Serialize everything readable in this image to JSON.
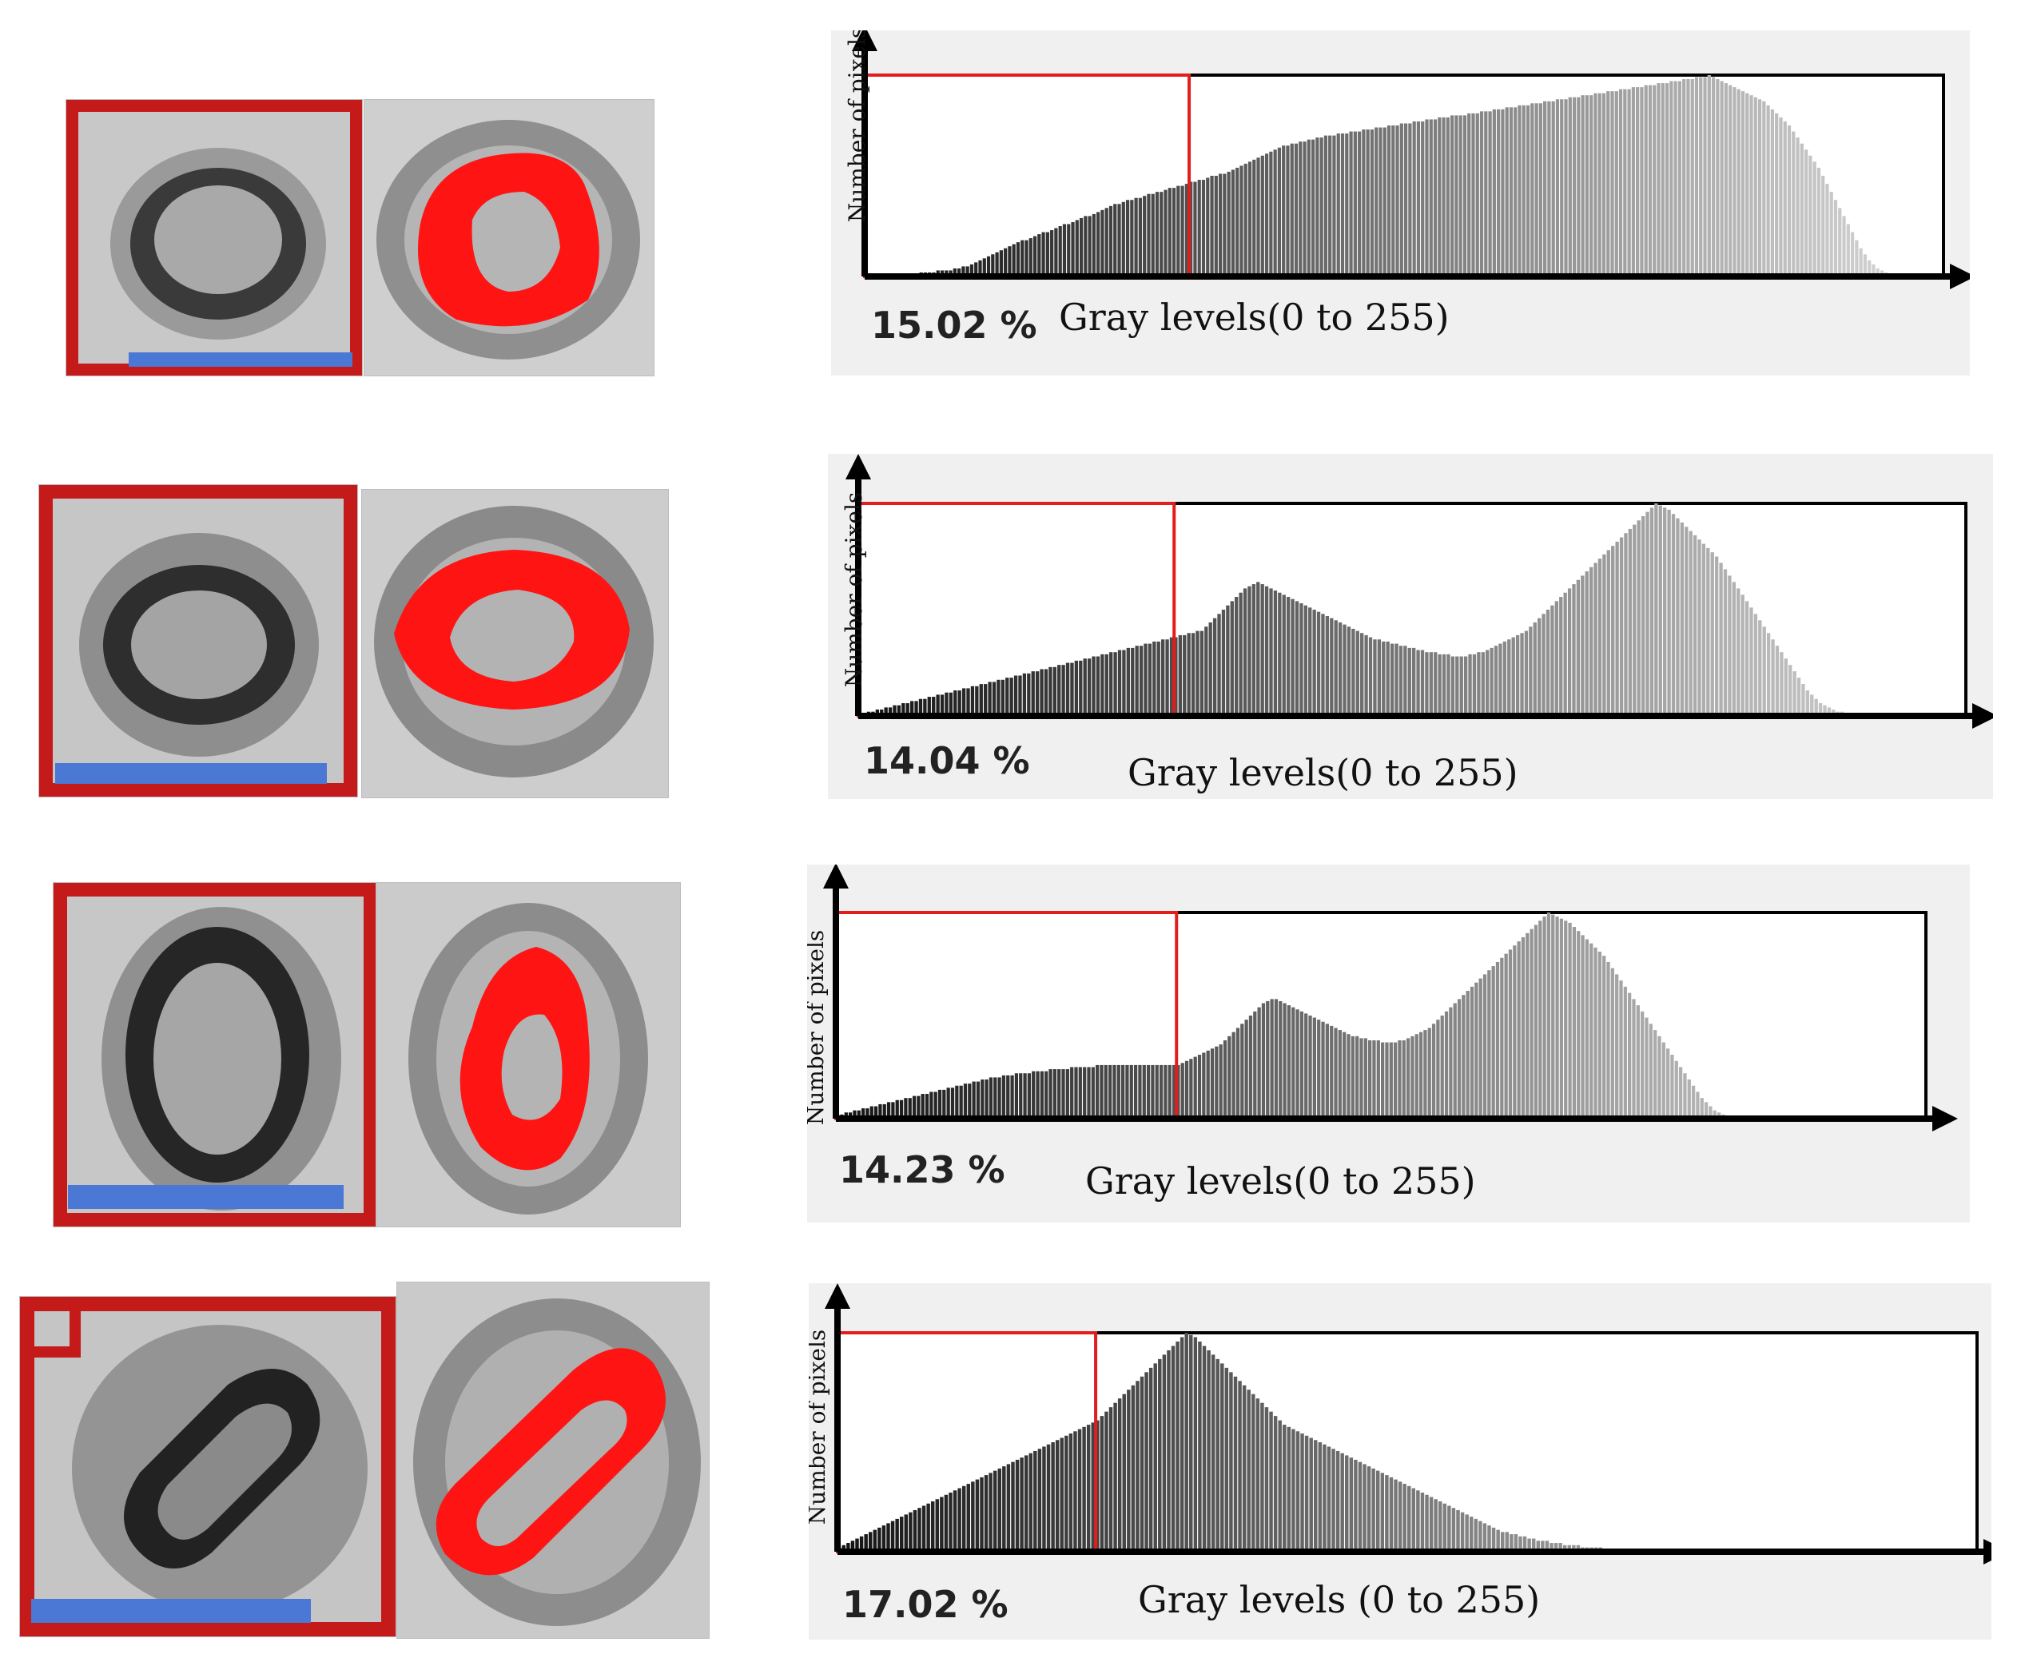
{
  "colors": {
    "threshold_line": "#e11d1d",
    "roi_box": "#c41a1a",
    "scale_bar": "#4a78d4",
    "segmentation": "#ff1414",
    "panel_background": "#f0f0f0",
    "axis": "#000000"
  },
  "micrographs": [
    {
      "roi": "red-box",
      "scale_bar": true
    },
    {
      "roi": "red-box",
      "scale_bar": true
    },
    {
      "roi": "red-box",
      "scale_bar": true
    },
    {
      "roi": "red-box",
      "scale_bar": true
    }
  ],
  "chart_data": [
    {
      "type": "bar",
      "xlabel": "Gray levels(0 to 255)",
      "ylabel": "Number of pixels",
      "threshold_percent_label": "15.02 %",
      "threshold_gray_level": 77,
      "xlim": [
        0,
        255
      ],
      "ylim": [
        0,
        100
      ],
      "x_start": 0,
      "values": [
        0,
        0,
        0,
        0,
        0,
        0,
        0,
        1,
        0,
        1,
        1,
        1,
        1,
        2,
        2,
        2,
        2,
        3,
        3,
        3,
        3,
        4,
        4,
        5,
        5,
        6,
        7,
        8,
        9,
        10,
        11,
        12,
        13,
        14,
        15,
        16,
        17,
        18,
        18,
        19,
        20,
        21,
        22,
        22,
        23,
        24,
        25,
        26,
        26,
        27,
        28,
        29,
        30,
        30,
        31,
        32,
        33,
        34,
        35,
        36,
        36,
        37,
        38,
        38,
        39,
        39,
        40,
        41,
        41,
        42,
        42,
        43,
        44,
        44,
        45,
        45,
        46,
        47,
        47,
        48,
        48,
        49,
        50,
        50,
        51,
        51,
        52,
        53,
        54,
        55,
        56,
        57,
        58,
        59,
        60,
        61,
        62,
        63,
        64,
        65,
        65,
        66,
        66,
        67,
        67,
        68,
        68,
        69,
        69,
        70,
        70,
        70,
        71,
        71,
        71,
        72,
        72,
        72,
        73,
        73,
        73,
        74,
        74,
        74,
        75,
        75,
        75,
        76,
        76,
        76,
        77,
        77,
        77,
        78,
        78,
        78,
        79,
        79,
        79,
        80,
        80,
        80,
        80,
        81,
        81,
        81,
        82,
        82,
        82,
        83,
        83,
        83,
        84,
        84,
        84,
        85,
        85,
        85,
        86,
        86,
        86,
        87,
        87,
        87,
        88,
        88,
        88,
        89,
        89,
        89,
        90,
        90,
        90,
        91,
        91,
        91,
        92,
        92,
        92,
        93,
        93,
        93,
        94,
        94,
        94,
        95,
        95,
        95,
        96,
        96,
        96,
        97,
        97,
        97,
        98,
        98,
        98,
        99,
        99,
        99,
        100,
        99,
        98,
        97,
        96,
        95,
        94,
        93,
        92,
        91,
        90,
        89,
        88,
        87,
        85,
        83,
        81,
        79,
        77,
        75,
        72,
        69,
        66,
        63,
        60,
        57,
        54,
        50,
        46,
        42,
        38,
        34,
        30,
        26,
        22,
        18,
        14,
        11,
        8,
        6,
        4,
        3,
        2,
        1,
        1,
        0,
        0,
        0,
        0,
        0,
        0,
        0,
        0,
        0,
        0,
        0
      ]
    },
    {
      "type": "bar",
      "xlabel": "Gray levels(0 to 255)",
      "ylabel": "Number of pixels",
      "threshold_percent_label": "14.04 %",
      "threshold_gray_level": 73,
      "xlim": [
        0,
        255
      ],
      "ylim": [
        0,
        100
      ],
      "x_start": 0,
      "values": [
        1,
        1,
        2,
        2,
        3,
        3,
        4,
        4,
        5,
        5,
        6,
        6,
        7,
        7,
        8,
        8,
        9,
        9,
        10,
        10,
        11,
        11,
        12,
        12,
        13,
        13,
        14,
        14,
        15,
        15,
        16,
        16,
        17,
        17,
        18,
        18,
        19,
        19,
        20,
        20,
        21,
        21,
        22,
        22,
        23,
        23,
        24,
        24,
        25,
        25,
        26,
        26,
        27,
        27,
        28,
        28,
        29,
        29,
        30,
        30,
        31,
        31,
        32,
        32,
        33,
        33,
        34,
        34,
        35,
        35,
        36,
        36,
        37,
        37,
        38,
        38,
        39,
        39,
        40,
        40,
        42,
        44,
        46,
        48,
        50,
        52,
        54,
        56,
        58,
        60,
        61,
        62,
        63,
        62,
        61,
        60,
        59,
        58,
        57,
        56,
        55,
        54,
        53,
        52,
        51,
        50,
        49,
        48,
        47,
        46,
        45,
        44,
        43,
        42,
        41,
        40,
        39,
        38,
        37,
        36,
        36,
        35,
        35,
        34,
        34,
        33,
        33,
        32,
        32,
        31,
        31,
        30,
        30,
        30,
        29,
        29,
        29,
        28,
        28,
        28,
        28,
        29,
        29,
        30,
        30,
        31,
        32,
        33,
        34,
        35,
        36,
        37,
        38,
        39,
        40,
        42,
        44,
        46,
        48,
        50,
        52,
        54,
        56,
        58,
        60,
        62,
        64,
        66,
        68,
        70,
        72,
        74,
        76,
        78,
        80,
        82,
        84,
        86,
        88,
        90,
        92,
        94,
        96,
        98,
        100,
        99,
        98,
        97,
        95,
        93,
        91,
        89,
        87,
        85,
        83,
        81,
        79,
        77,
        75,
        72,
        69,
        66,
        63,
        60,
        57,
        54,
        51,
        48,
        45,
        42,
        39,
        36,
        33,
        30,
        27,
        24,
        21,
        18,
        15,
        12,
        10,
        8,
        6,
        5,
        4,
        3,
        2,
        2,
        1,
        1,
        1,
        0,
        0,
        0,
        0,
        0,
        0,
        0,
        0,
        0,
        0,
        0,
        0,
        0,
        0,
        0,
        0,
        0,
        0,
        0,
        0,
        0,
        0,
        0,
        0,
        0,
        0,
        0,
        0,
        0,
        0,
        0,
        0,
        0,
        0
      ]
    },
    {
      "type": "bar",
      "xlabel": "Gray levels(0 to 255)",
      "ylabel": "Number of pixels",
      "threshold_percent_label": "14.23 %",
      "threshold_gray_level": 80,
      "xlim": [
        0,
        255
      ],
      "ylim": [
        0,
        100
      ],
      "x_start": 0,
      "values": [
        2,
        2,
        3,
        3,
        4,
        4,
        5,
        5,
        6,
        6,
        7,
        7,
        8,
        8,
        9,
        9,
        10,
        10,
        11,
        11,
        12,
        12,
        13,
        13,
        14,
        14,
        15,
        15,
        16,
        16,
        17,
        17,
        18,
        18,
        19,
        19,
        20,
        20,
        20,
        21,
        21,
        21,
        22,
        22,
        22,
        22,
        23,
        23,
        23,
        23,
        24,
        24,
        24,
        24,
        24,
        25,
        25,
        25,
        25,
        25,
        25,
        26,
        26,
        26,
        26,
        26,
        26,
        26,
        26,
        26,
        26,
        26,
        26,
        26,
        26,
        26,
        26,
        26,
        26,
        26,
        26,
        27,
        28,
        29,
        30,
        31,
        32,
        33,
        34,
        35,
        36,
        38,
        40,
        42,
        44,
        46,
        48,
        50,
        52,
        54,
        56,
        57,
        58,
        58,
        57,
        56,
        55,
        54,
        53,
        52,
        51,
        50,
        49,
        48,
        47,
        46,
        45,
        44,
        43,
        42,
        41,
        40,
        40,
        39,
        39,
        38,
        38,
        38,
        37,
        37,
        37,
        37,
        38,
        38,
        39,
        40,
        41,
        42,
        43,
        44,
        46,
        48,
        50,
        52,
        54,
        56,
        58,
        60,
        62,
        64,
        66,
        68,
        70,
        72,
        74,
        76,
        78,
        80,
        82,
        84,
        86,
        88,
        90,
        92,
        94,
        96,
        98,
        100,
        99,
        98,
        97,
        96,
        95,
        93,
        91,
        89,
        87,
        85,
        83,
        81,
        79,
        76,
        73,
        70,
        67,
        64,
        61,
        58,
        55,
        52,
        49,
        46,
        43,
        40,
        37,
        34,
        31,
        28,
        25,
        22,
        19,
        16,
        13,
        10,
        8,
        6,
        4,
        3,
        2,
        1,
        1,
        0,
        0,
        0,
        0,
        0,
        0,
        0,
        0,
        0,
        0,
        0,
        0,
        0,
        0,
        0,
        0,
        0,
        0,
        0,
        0,
        0,
        0,
        0,
        0,
        0,
        0,
        0,
        0,
        0,
        0,
        0,
        0,
        0,
        0,
        0,
        0,
        0,
        0,
        0,
        0,
        0,
        0,
        0,
        0,
        0,
        0
      ]
    },
    {
      "type": "bar",
      "xlabel": "Gray levels (0 to 255)",
      "ylabel": "Number of pixels",
      "threshold_percent_label": "17.02 %",
      "threshold_gray_level": 58,
      "xlim": [
        0,
        255
      ],
      "ylim": [
        0,
        100
      ],
      "x_start": 0,
      "values": [
        2,
        3,
        4,
        5,
        6,
        7,
        8,
        9,
        10,
        11,
        12,
        13,
        14,
        15,
        16,
        17,
        18,
        19,
        20,
        21,
        22,
        23,
        24,
        25,
        26,
        27,
        28,
        29,
        30,
        31,
        32,
        33,
        34,
        35,
        36,
        37,
        38,
        39,
        40,
        41,
        42,
        43,
        44,
        45,
        46,
        47,
        48,
        49,
        50,
        51,
        52,
        53,
        54,
        55,
        56,
        57,
        58,
        59,
        60,
        62,
        64,
        66,
        68,
        70,
        72,
        74,
        76,
        78,
        80,
        82,
        84,
        86,
        88,
        90,
        92,
        94,
        96,
        98,
        100,
        99,
        98,
        96,
        94,
        92,
        90,
        88,
        86,
        84,
        82,
        80,
        78,
        76,
        74,
        72,
        70,
        68,
        66,
        64,
        62,
        60,
        58,
        57,
        56,
        55,
        54,
        53,
        52,
        51,
        50,
        49,
        48,
        47,
        46,
        45,
        44,
        43,
        42,
        41,
        40,
        39,
        38,
        37,
        36,
        35,
        34,
        33,
        32,
        31,
        30,
        29,
        28,
        27,
        26,
        25,
        24,
        23,
        22,
        21,
        20,
        19,
        18,
        17,
        16,
        15,
        14,
        13,
        12,
        11,
        10,
        9,
        9,
        8,
        8,
        7,
        7,
        6,
        6,
        5,
        5,
        5,
        4,
        4,
        4,
        3,
        3,
        3,
        3,
        2,
        2,
        2,
        2,
        2,
        1,
        1,
        1,
        1,
        1,
        1,
        1,
        1,
        0,
        0,
        0,
        0,
        0,
        0,
        0,
        0,
        0,
        0,
        0,
        0,
        0,
        0,
        0,
        0,
        0,
        0,
        0,
        0,
        0,
        0,
        0,
        0,
        0,
        0,
        0,
        0,
        0,
        0,
        0,
        0,
        0,
        0,
        0,
        0,
        0,
        0,
        0,
        0,
        0,
        0,
        0,
        0,
        0,
        0,
        0,
        0,
        0,
        0,
        0,
        0,
        0,
        0,
        0,
        0,
        0,
        0,
        0,
        0,
        0,
        0,
        0,
        0,
        0,
        0,
        0,
        0,
        0,
        0,
        0,
        0,
        0,
        0,
        0,
        0,
        0,
        0,
        0,
        0,
        0,
        0,
        0,
        0
      ]
    }
  ]
}
